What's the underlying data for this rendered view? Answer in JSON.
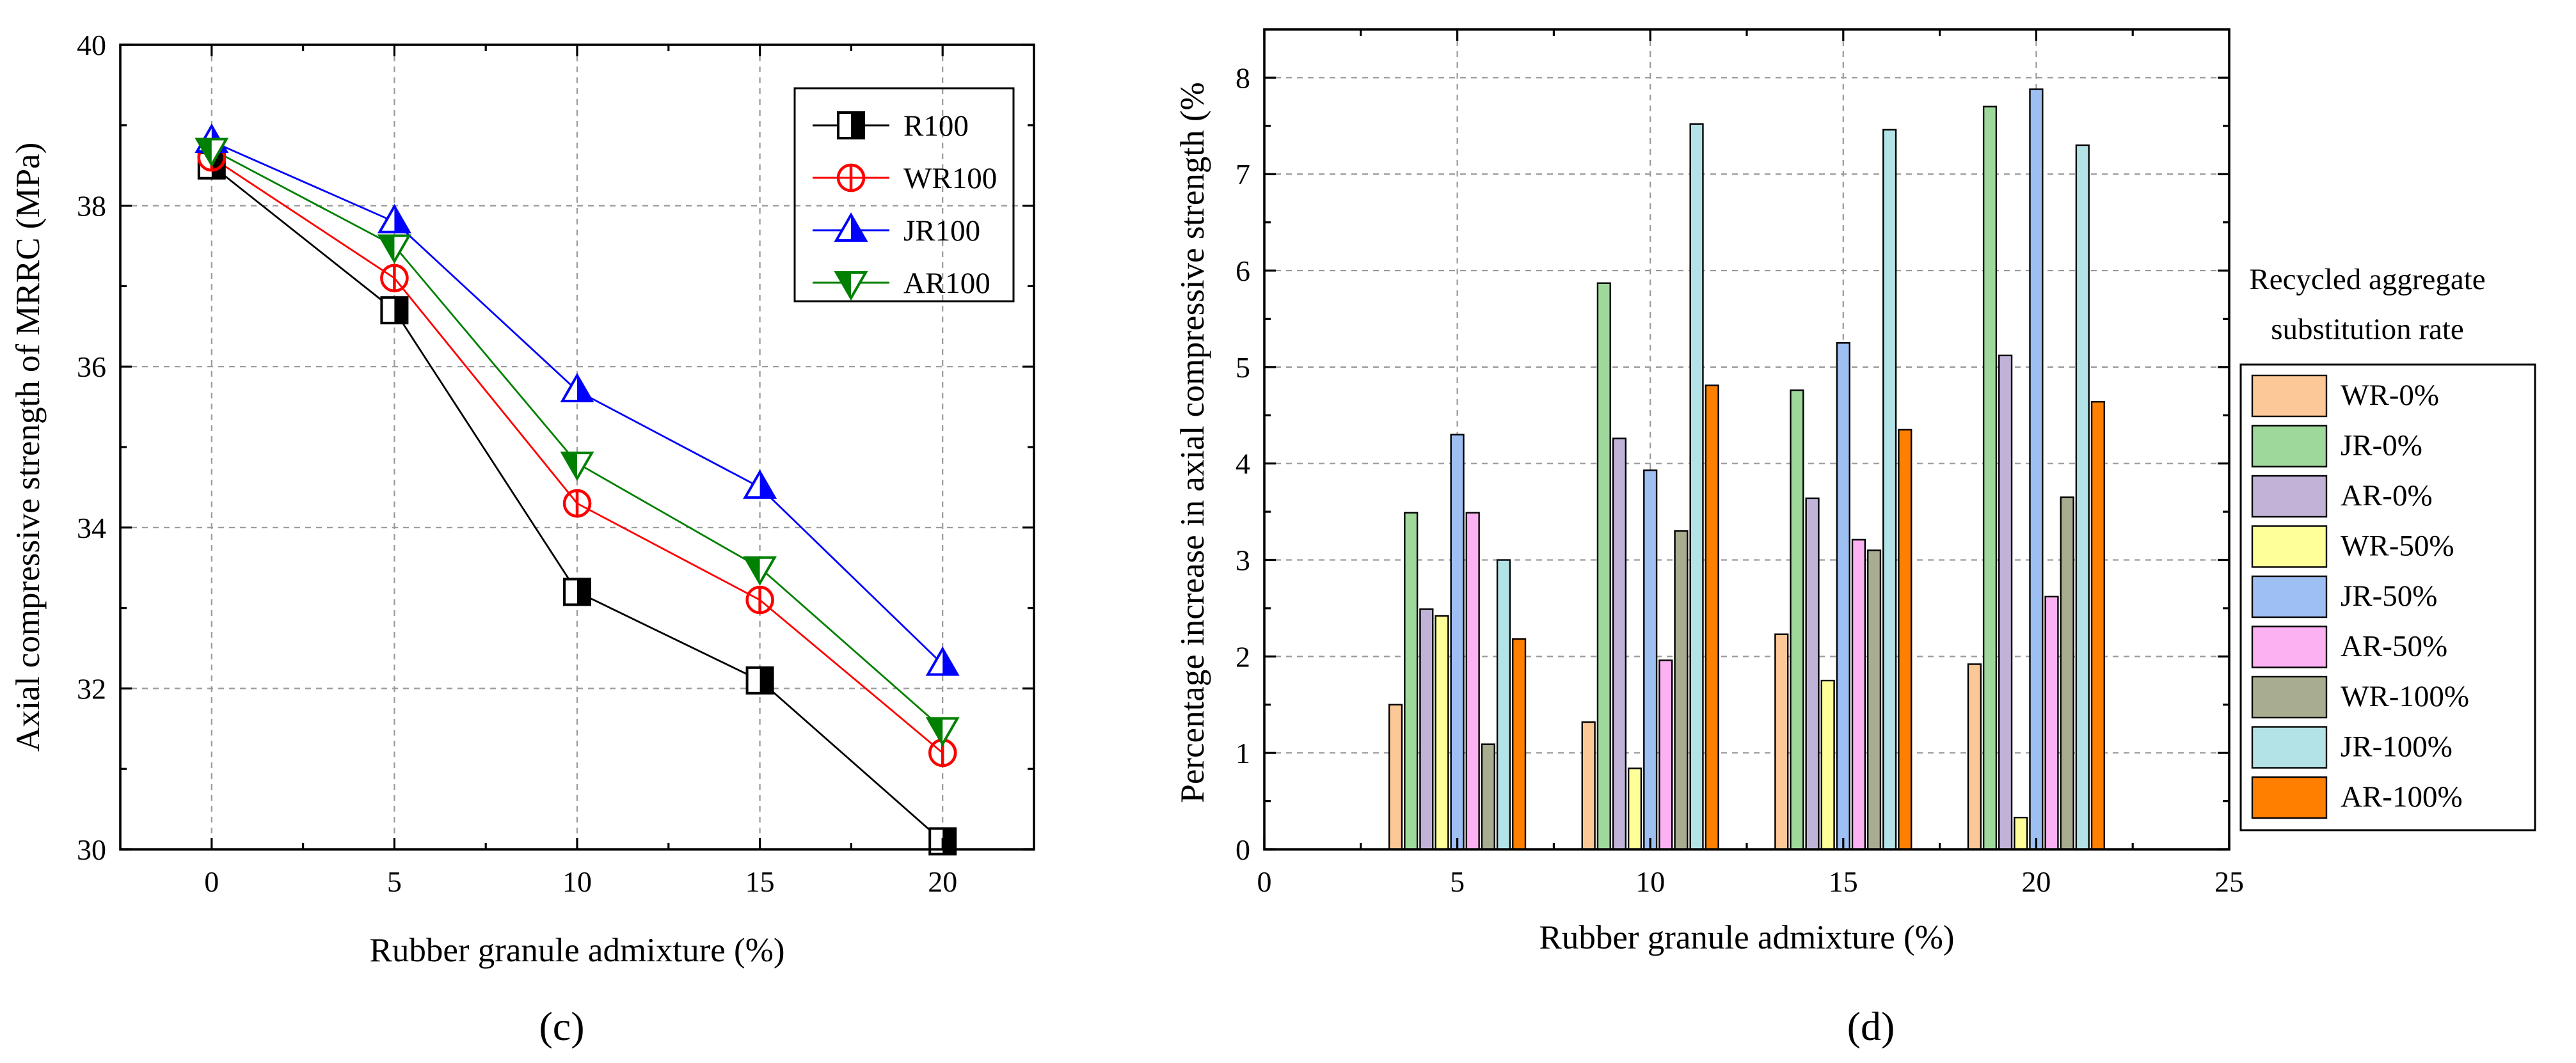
{
  "chart_data": [
    {
      "type": "line",
      "panel_label": "(c)",
      "xlabel": "Rubber granule admixture (%)",
      "ylabel": "Axial compressive strength of MRRC (MPa)",
      "x": [
        0,
        5,
        10,
        15,
        20
      ],
      "xticks": [
        "0",
        "5",
        "10",
        "15",
        "20"
      ],
      "yticks": [
        "30",
        "32",
        "34",
        "36",
        "38",
        "40"
      ],
      "xlim": [
        -2.5,
        22.5
      ],
      "ylim": [
        30,
        40
      ],
      "grid": true,
      "legend_position": "top-right",
      "series": [
        {
          "name": "R100",
          "marker": "square-half",
          "color": "#000000",
          "values": [
            38.5,
            36.7,
            33.2,
            32.1,
            30.1
          ]
        },
        {
          "name": "WR100",
          "marker": "circle",
          "color": "#ff0000",
          "values": [
            38.6,
            37.1,
            34.3,
            33.1,
            31.2
          ]
        },
        {
          "name": "JR100",
          "marker": "triangle-up",
          "color": "#0000ff",
          "values": [
            38.8,
            37.8,
            35.7,
            34.5,
            32.3
          ]
        },
        {
          "name": "AR100",
          "marker": "triangle-down",
          "color": "#008000",
          "values": [
            38.7,
            37.5,
            34.8,
            33.5,
            31.5
          ]
        }
      ]
    },
    {
      "type": "bar",
      "panel_label": "(d)",
      "xlabel": "Rubber granule admixture (%)",
      "ylabel": "Percentage increase in axial compressive strength (%",
      "categories": [
        5,
        10,
        15,
        20
      ],
      "xticks": [
        "0",
        "5",
        "10",
        "15",
        "20",
        "25"
      ],
      "yticks": [
        "0",
        "1",
        "2",
        "3",
        "4",
        "5",
        "6",
        "7",
        "8"
      ],
      "xlim": [
        0,
        25
      ],
      "ylim": [
        0,
        8.5
      ],
      "grid": true,
      "legend_title_lines": [
        "Recycled aggregate",
        "substitution rate"
      ],
      "legend_position": "right",
      "series": [
        {
          "name": "WR-0%",
          "color": "#fcc897",
          "values": [
            1.5,
            1.32,
            2.23,
            1.92
          ]
        },
        {
          "name": "JR-0%",
          "color": "#9fd89b",
          "values": [
            3.49,
            5.87,
            4.76,
            7.7
          ]
        },
        {
          "name": "AR-0%",
          "color": "#c1b3d8",
          "values": [
            2.49,
            4.26,
            3.64,
            5.12
          ]
        },
        {
          "name": "WR-50%",
          "color": "#ffff99",
          "values": [
            2.42,
            0.84,
            1.75,
            0.33
          ]
        },
        {
          "name": "JR-50%",
          "color": "#9ebff2",
          "values": [
            4.3,
            3.93,
            5.25,
            7.88
          ]
        },
        {
          "name": "AR-50%",
          "color": "#fcb1f2",
          "values": [
            3.49,
            1.96,
            3.21,
            2.62
          ]
        },
        {
          "name": "WR-100%",
          "color": "#a7ad8e",
          "values": [
            1.09,
            3.3,
            3.1,
            3.65
          ]
        },
        {
          "name": "JR-100%",
          "color": "#b3e3e6",
          "values": [
            3.0,
            7.52,
            7.46,
            7.3
          ]
        },
        {
          "name": "AR-100%",
          "color": "#ff7f00",
          "values": [
            2.18,
            4.81,
            4.35,
            4.64
          ]
        }
      ]
    }
  ]
}
